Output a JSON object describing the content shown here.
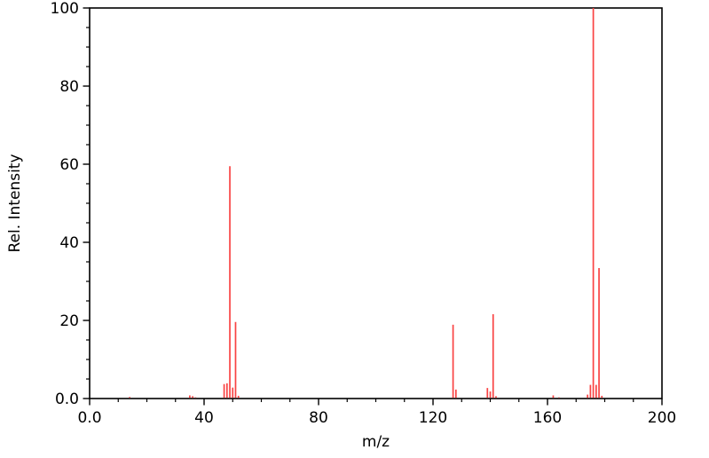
{
  "chart_data": {
    "type": "bar",
    "subtype": "mass-spectrum",
    "title": "",
    "xlabel": "m/z",
    "ylabel": "Rel. Intensity",
    "xlim": [
      0,
      200
    ],
    "ylim": [
      0,
      100
    ],
    "x_major_ticks": [
      0,
      40,
      80,
      120,
      160,
      200
    ],
    "x_major_tick_labels": [
      "0.0",
      "40",
      "80",
      "120",
      "160",
      "200"
    ],
    "x_minor_tick_step": 10,
    "y_major_ticks": [
      0,
      20,
      40,
      60,
      80,
      100
    ],
    "y_major_tick_labels": [
      "0.0",
      "20",
      "40",
      "60",
      "80",
      "100"
    ],
    "y_minor_tick_step": 5,
    "grid": "off",
    "frame": "box",
    "legend": "none",
    "peak_color": "#f94343",
    "axis_color": "#000000",
    "background_color": "#ffffff",
    "peaks": [
      {
        "mz": 14,
        "intensity": 0.4
      },
      {
        "mz": 35,
        "intensity": 0.8
      },
      {
        "mz": 36,
        "intensity": 0.6
      },
      {
        "mz": 37,
        "intensity": 0.3
      },
      {
        "mz": 47,
        "intensity": 3.7
      },
      {
        "mz": 48,
        "intensity": 3.9
      },
      {
        "mz": 49,
        "intensity": 59.5
      },
      {
        "mz": 50,
        "intensity": 2.8
      },
      {
        "mz": 51,
        "intensity": 19.6
      },
      {
        "mz": 52,
        "intensity": 0.7
      },
      {
        "mz": 127,
        "intensity": 18.9
      },
      {
        "mz": 128,
        "intensity": 2.3
      },
      {
        "mz": 139,
        "intensity": 2.7
      },
      {
        "mz": 140,
        "intensity": 1.8
      },
      {
        "mz": 141,
        "intensity": 21.6
      },
      {
        "mz": 142,
        "intensity": 0.6
      },
      {
        "mz": 162,
        "intensity": 0.8
      },
      {
        "mz": 164,
        "intensity": 0.3
      },
      {
        "mz": 174,
        "intensity": 1.0
      },
      {
        "mz": 175,
        "intensity": 3.5
      },
      {
        "mz": 176,
        "intensity": 100
      },
      {
        "mz": 177,
        "intensity": 3.5
      },
      {
        "mz": 178,
        "intensity": 33.4
      },
      {
        "mz": 179,
        "intensity": 0.7
      }
    ]
  }
}
